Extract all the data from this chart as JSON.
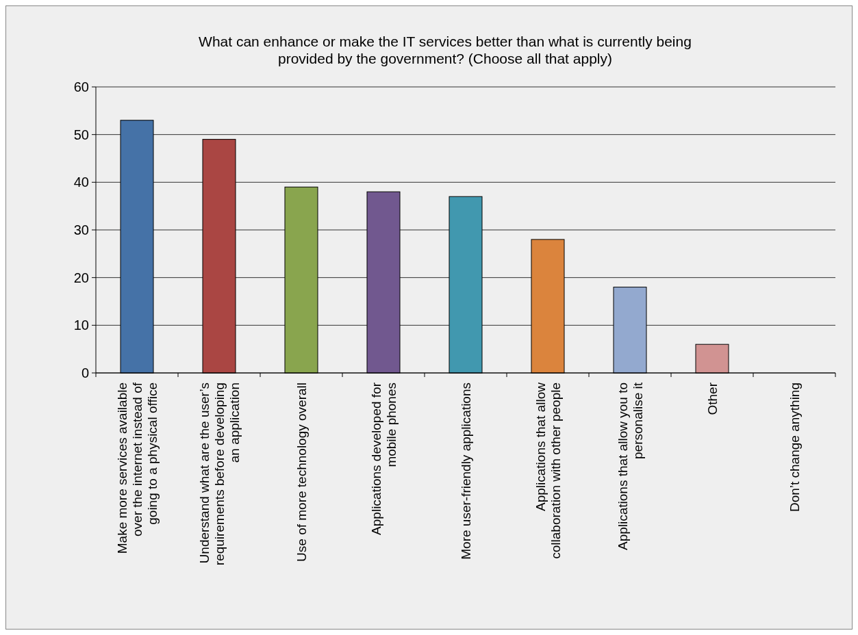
{
  "chart_data": {
    "type": "bar",
    "title": "What can enhance or make the IT services better than what is currently being provided by the government? (Choose all that apply)",
    "categories": [
      "Make more services available over the internet instead of going to a physical office",
      "Understand what are the user’s requirements before developing an application",
      "Use of more technology overall",
      "Applications developed for mobile phones",
      "More user-friendly applications",
      "Applications that allow collaboration with other people",
      "Applications that allow you to personalise it",
      "Other",
      "Don’t change anything"
    ],
    "values": [
      53,
      49,
      39,
      38,
      37,
      28,
      18,
      6,
      0
    ],
    "colors": [
      "#4572a7",
      "#aa4643",
      "#89a54e",
      "#71588f",
      "#4198af",
      "#db843d",
      "#93a9cf",
      "#d19392",
      "#a47d7c"
    ],
    "ylim": [
      0,
      60
    ],
    "yticks": [
      0,
      10,
      20,
      30,
      40,
      50,
      60
    ],
    "grid": "y"
  }
}
